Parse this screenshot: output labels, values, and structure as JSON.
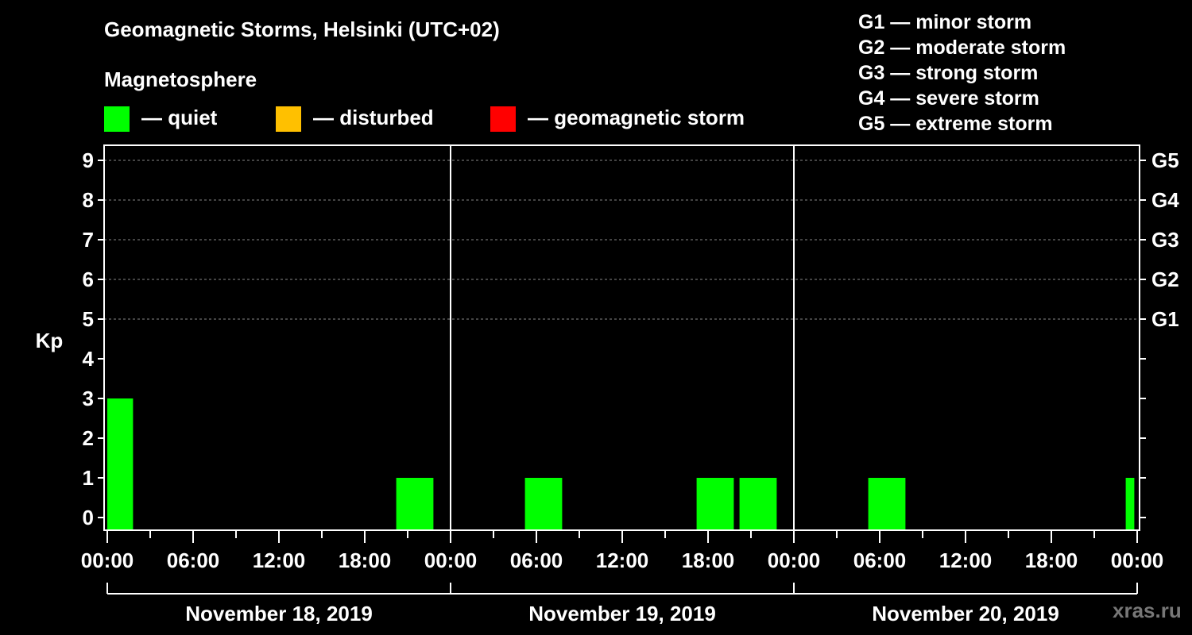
{
  "chart_data": {
    "type": "bar",
    "title": "Geomagnetic Storms, Helsinki (UTC+02)",
    "subtitle": "Magnetosphere",
    "ylabel": "Kp",
    "ylim": [
      0,
      9
    ],
    "y_ticks": [
      "0",
      "1",
      "2",
      "3",
      "4",
      "5",
      "6",
      "7",
      "8",
      "9"
    ],
    "storm_levels": [
      {
        "kp": 5,
        "label": "G1"
      },
      {
        "kp": 6,
        "label": "G2"
      },
      {
        "kp": 7,
        "label": "G3"
      },
      {
        "kp": 8,
        "label": "G4"
      },
      {
        "kp": 9,
        "label": "G5"
      }
    ],
    "x_range_hours": [
      0,
      72
    ],
    "x_tick_labels": [
      "00:00",
      "06:00",
      "12:00",
      "18:00",
      "00:00",
      "06:00",
      "12:00",
      "18:00",
      "00:00",
      "06:00",
      "12:00",
      "18:00",
      "00:00"
    ],
    "days": [
      "November 18, 2019",
      "November 19, 2019",
      "November 20, 2019"
    ],
    "bars": [
      {
        "start_hour": 0,
        "end_hour": 1.8,
        "kp": 3,
        "status": "quiet"
      },
      {
        "start_hour": 20.2,
        "end_hour": 22.8,
        "kp": 1,
        "status": "quiet"
      },
      {
        "start_hour": 29.2,
        "end_hour": 31.8,
        "kp": 1,
        "status": "quiet"
      },
      {
        "start_hour": 41.2,
        "end_hour": 43.8,
        "kp": 1,
        "status": "quiet"
      },
      {
        "start_hour": 44.2,
        "end_hour": 46.8,
        "kp": 1,
        "status": "quiet"
      },
      {
        "start_hour": 53.2,
        "end_hour": 55.8,
        "kp": 1,
        "status": "quiet"
      },
      {
        "start_hour": 71.2,
        "end_hour": 71.8,
        "kp": 1,
        "status": "quiet"
      }
    ],
    "legend": [
      {
        "key": "quiet",
        "label": "— quiet",
        "color": "#00ff00"
      },
      {
        "key": "disturbed",
        "label": "— disturbed",
        "color": "#ffc000"
      },
      {
        "key": "storm",
        "label": "— geomagnetic storm",
        "color": "#ff0000"
      }
    ],
    "storm_scale": [
      "G1 — minor storm",
      "G2 — moderate storm",
      "G3 — strong storm",
      "G4 — severe storm",
      "G5 — extreme storm"
    ]
  },
  "watermark": "xras.ru"
}
